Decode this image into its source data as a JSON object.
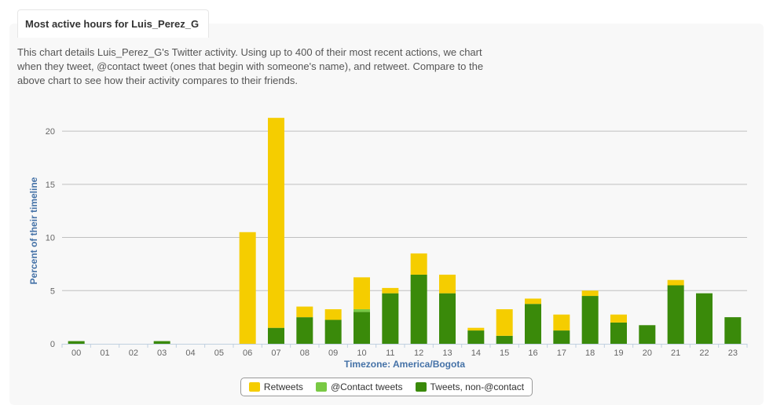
{
  "header": {
    "tab_title": "Most active hours for Luis_Perez_G",
    "description": "This chart details Luis_Perez_G's Twitter activity. Using up to 400 of their most recent actions, we chart when they tweet, @contact tweet (ones that begin with someone's name), and retweet. Compare to the above chart to see how their activity compares to their friends."
  },
  "chart_data": {
    "type": "bar",
    "stacked": true,
    "categories": [
      "00",
      "01",
      "02",
      "03",
      "04",
      "05",
      "06",
      "07",
      "08",
      "09",
      "10",
      "11",
      "12",
      "13",
      "14",
      "15",
      "16",
      "17",
      "18",
      "19",
      "20",
      "21",
      "22",
      "23"
    ],
    "series": [
      {
        "name": "Tweets, non-@contact",
        "color": "#3a8a0a",
        "values": [
          0.25,
          0,
          0,
          0.25,
          0,
          0,
          0,
          1.5,
          2.5,
          2.25,
          3.0,
          4.75,
          6.5,
          4.75,
          1.25,
          0.75,
          3.75,
          1.25,
          4.5,
          2.0,
          1.75,
          5.5,
          4.75,
          2.5
        ]
      },
      {
        "name": "@Contact tweets",
        "color": "#79c944",
        "values": [
          0,
          0,
          0,
          0,
          0,
          0,
          0,
          0,
          0,
          0,
          0.25,
          0,
          0,
          0,
          0,
          0,
          0,
          0,
          0,
          0,
          0,
          0,
          0,
          0
        ]
      },
      {
        "name": "Retweets",
        "color": "#f5cd00",
        "values": [
          0,
          0,
          0,
          0,
          0,
          0,
          10.5,
          19.75,
          1.0,
          1.0,
          3.0,
          0.5,
          2.0,
          1.75,
          0.25,
          2.5,
          0.5,
          1.5,
          0.5,
          0.75,
          0,
          0.5,
          0,
          0
        ]
      }
    ],
    "legend_order": [
      "Retweets",
      "@Contact tweets",
      "Tweets, non-@contact"
    ],
    "xlabel": "Timezone: America/Bogota",
    "ylabel": "Percent of their timeline",
    "ylim": [
      0,
      22
    ],
    "yticks": [
      0,
      5,
      10,
      15,
      20
    ],
    "grid": true,
    "legend_position": "bottom"
  },
  "colors": {
    "axis_title": "#4572a7",
    "grid": "#c0c0c0",
    "tick_text": "#666666"
  }
}
